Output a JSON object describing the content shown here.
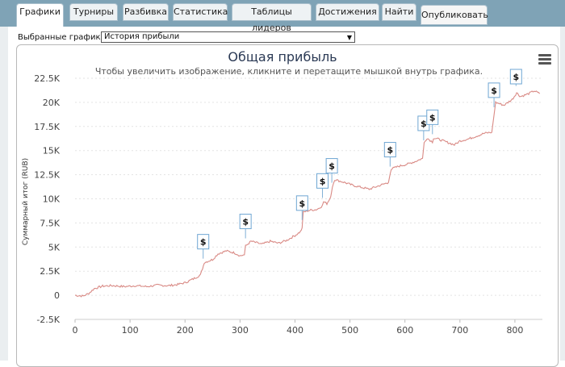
{
  "tabs": [
    {
      "label": "Графики",
      "active": true
    },
    {
      "label": "Турниры"
    },
    {
      "label": "Разбивка"
    },
    {
      "label": "Статистика"
    },
    {
      "label": "Таблицы лидеров"
    },
    {
      "label": "Достижения"
    },
    {
      "label": "Найти"
    }
  ],
  "publish_label": "Опубликовать",
  "selector": {
    "label": "Выбранные графики:",
    "value": "История прибыли"
  },
  "chart_data": {
    "type": "line",
    "title": "Общая прибыль",
    "subtitle": "Чтобы увеличить изображение, кликните и перетащите мышкой внутрь графика.",
    "ylabel": "Суммарный итог (RUB)",
    "xlabel": "",
    "x_ticks": [
      0,
      100,
      200,
      300,
      400,
      500,
      600,
      700,
      800
    ],
    "y_ticks": [
      "-2.5K",
      "0",
      "2.5K",
      "5K",
      "7.5K",
      "10K",
      "12.5K",
      "15K",
      "17.5K",
      "20K",
      "22.5K"
    ],
    "y_tick_values": [
      -2500,
      0,
      2500,
      5000,
      7500,
      10000,
      12500,
      15000,
      17500,
      20000,
      22500
    ],
    "xlim": [
      0,
      850
    ],
    "ylim": [
      -2500,
      22500
    ],
    "grid": true,
    "series": [
      {
        "color": "#d98a85",
        "points": [
          [
            0,
            0
          ],
          [
            15,
            -80
          ],
          [
            25,
            200
          ],
          [
            35,
            700
          ],
          [
            50,
            950
          ],
          [
            70,
            1000
          ],
          [
            90,
            900
          ],
          [
            110,
            1000
          ],
          [
            130,
            900
          ],
          [
            150,
            1050
          ],
          [
            170,
            1000
          ],
          [
            185,
            1100
          ],
          [
            200,
            1300
          ],
          [
            215,
            1700
          ],
          [
            228,
            2100
          ],
          [
            232,
            2800
          ],
          [
            235,
            3400
          ],
          [
            250,
            3700
          ],
          [
            260,
            4300
          ],
          [
            275,
            4600
          ],
          [
            290,
            4400
          ],
          [
            300,
            4100
          ],
          [
            308,
            4200
          ],
          [
            310,
            5100
          ],
          [
            320,
            5600
          ],
          [
            340,
            5300
          ],
          [
            355,
            5600
          ],
          [
            370,
            5400
          ],
          [
            385,
            5700
          ],
          [
            400,
            6200
          ],
          [
            410,
            6600
          ],
          [
            413,
            7000
          ],
          [
            415,
            8600
          ],
          [
            425,
            8800
          ],
          [
            440,
            8900
          ],
          [
            450,
            9300
          ],
          [
            452,
            9700
          ],
          [
            458,
            9500
          ],
          [
            465,
            10200
          ],
          [
            468,
            11200
          ],
          [
            472,
            12000
          ],
          [
            490,
            11700
          ],
          [
            505,
            11400
          ],
          [
            520,
            11200
          ],
          [
            535,
            11000
          ],
          [
            550,
            11300
          ],
          [
            565,
            11600
          ],
          [
            570,
            11700
          ],
          [
            575,
            13100
          ],
          [
            590,
            13400
          ],
          [
            605,
            13600
          ],
          [
            620,
            13900
          ],
          [
            632,
            14200
          ],
          [
            635,
            15800
          ],
          [
            640,
            16300
          ],
          [
            650,
            15900
          ],
          [
            652,
            16300
          ],
          [
            660,
            16200
          ],
          [
            675,
            15900
          ],
          [
            690,
            15600
          ],
          [
            700,
            16000
          ],
          [
            715,
            16200
          ],
          [
            730,
            16500
          ],
          [
            745,
            16800
          ],
          [
            758,
            16900
          ],
          [
            762,
            18700
          ],
          [
            765,
            20000
          ],
          [
            780,
            19700
          ],
          [
            795,
            20300
          ],
          [
            800,
            20700
          ],
          [
            803,
            21000
          ],
          [
            810,
            20600
          ],
          [
            825,
            20900
          ],
          [
            835,
            21200
          ],
          [
            845,
            20900
          ]
        ]
      }
    ],
    "markers": [
      {
        "label": "$",
        "x": 233
      },
      {
        "label": "$",
        "x": 310
      },
      {
        "label": "$",
        "x": 413
      },
      {
        "label": "$",
        "x": 450
      },
      {
        "label": "$",
        "x": 467
      },
      {
        "label": "$",
        "x": 573
      },
      {
        "label": "$",
        "x": 634
      },
      {
        "label": "$",
        "x": 650
      },
      {
        "label": "$",
        "x": 762
      },
      {
        "label": "$",
        "x": 802
      }
    ]
  }
}
